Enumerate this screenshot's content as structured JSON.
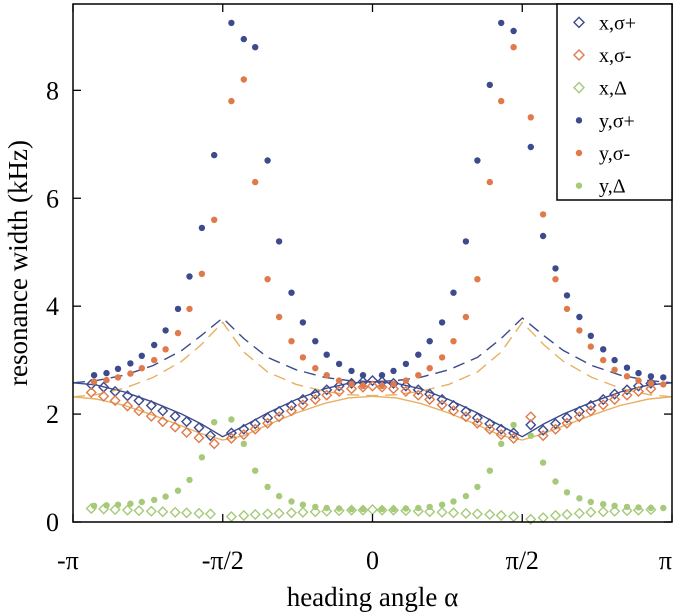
{
  "chart_data": {
    "type": "scatter",
    "xlabel": "heading angle α",
    "ylabel": "resonance width (kHz)",
    "xlim": [
      -3.14159,
      3.14159
    ],
    "ylim": [
      0,
      9.6
    ],
    "x_ticks": [
      {
        "value": -3.14159,
        "label": "-π"
      },
      {
        "value": -1.5708,
        "label": "-π/2"
      },
      {
        "value": 0,
        "label": "0"
      },
      {
        "value": 1.5708,
        "label": "π/2"
      },
      {
        "value": 3.14159,
        "label": "π"
      }
    ],
    "y_ticks": [
      {
        "value": 0,
        "label": "0"
      },
      {
        "value": 2,
        "label": "2"
      },
      {
        "value": 4,
        "label": "4"
      },
      {
        "value": 6,
        "label": "6"
      },
      {
        "value": 8,
        "label": "8"
      }
    ],
    "legend_position": "top-right",
    "colors": {
      "blue": "#3d4a8c",
      "orange": "#e07a4a",
      "green": "#a6c97a",
      "line_blue": "#3d4a8c",
      "line_orange": "#e8b060"
    },
    "series": [
      {
        "name": "x,σ+",
        "marker": "diamond-open",
        "color": "#3d4a8c",
        "x": [
          -2.95,
          -2.82,
          -2.7,
          -2.57,
          -2.45,
          -2.32,
          -2.2,
          -2.07,
          -1.95,
          -1.82,
          -1.7,
          -1.48,
          -1.35,
          -1.23,
          -1.1,
          -0.98,
          -0.85,
          -0.73,
          -0.6,
          -0.48,
          -0.35,
          -0.22,
          -0.1,
          0.0,
          0.1,
          0.22,
          0.35,
          0.48,
          0.6,
          0.73,
          0.85,
          0.98,
          1.1,
          1.23,
          1.35,
          1.48,
          1.66,
          1.79,
          1.92,
          2.04,
          2.17,
          2.29,
          2.42,
          2.54,
          2.67,
          2.79,
          2.92
        ],
        "y": [
          2.55,
          2.5,
          2.42,
          2.34,
          2.25,
          2.16,
          2.06,
          1.96,
          1.86,
          1.75,
          1.6,
          1.65,
          1.72,
          1.82,
          1.93,
          2.05,
          2.16,
          2.27,
          2.37,
          2.45,
          2.52,
          2.57,
          2.6,
          2.62,
          2.6,
          2.57,
          2.52,
          2.45,
          2.37,
          2.27,
          2.16,
          2.05,
          1.93,
          1.82,
          1.72,
          1.65,
          1.8,
          1.7,
          1.82,
          1.93,
          2.05,
          2.16,
          2.27,
          2.37,
          2.45,
          2.52,
          2.57
        ]
      },
      {
        "name": "x,σ-",
        "marker": "diamond-open",
        "color": "#e07a4a",
        "x": [
          -2.95,
          -2.82,
          -2.7,
          -2.57,
          -2.45,
          -2.32,
          -2.2,
          -2.07,
          -1.95,
          -1.82,
          -1.66,
          -1.48,
          -1.35,
          -1.23,
          -1.1,
          -0.98,
          -0.85,
          -0.73,
          -0.6,
          -0.48,
          -0.35,
          -0.22,
          -0.1,
          0.0,
          0.1,
          0.22,
          0.35,
          0.48,
          0.6,
          0.73,
          0.85,
          0.98,
          1.1,
          1.23,
          1.35,
          1.48,
          1.66,
          1.79,
          1.92,
          2.04,
          2.17,
          2.29,
          2.42,
          2.54,
          2.67,
          2.79,
          2.92
        ],
        "y": [
          2.4,
          2.33,
          2.25,
          2.15,
          2.06,
          1.96,
          1.86,
          1.76,
          1.66,
          1.56,
          1.45,
          1.55,
          1.62,
          1.72,
          1.83,
          1.95,
          2.06,
          2.17,
          2.27,
          2.35,
          2.42,
          2.47,
          2.5,
          2.52,
          2.5,
          2.47,
          2.42,
          2.35,
          2.27,
          2.17,
          2.06,
          1.95,
          1.83,
          1.72,
          1.62,
          1.55,
          1.95,
          1.6,
          1.72,
          1.83,
          1.95,
          2.06,
          2.17,
          2.27,
          2.35,
          2.42,
          2.47
        ]
      },
      {
        "name": "x,Δ",
        "marker": "diamond-open",
        "color": "#a6c97a",
        "x": [
          -2.95,
          -2.82,
          -2.7,
          -2.57,
          -2.45,
          -2.32,
          -2.2,
          -2.07,
          -1.95,
          -1.82,
          -1.7,
          -1.48,
          -1.35,
          -1.23,
          -1.1,
          -0.98,
          -0.85,
          -0.73,
          -0.6,
          -0.48,
          -0.35,
          -0.22,
          -0.1,
          0.0,
          0.1,
          0.22,
          0.35,
          0.48,
          0.6,
          0.73,
          0.85,
          0.98,
          1.1,
          1.23,
          1.35,
          1.48,
          1.66,
          1.79,
          1.92,
          2.04,
          2.17,
          2.29,
          2.42,
          2.54,
          2.67,
          2.79,
          2.92
        ],
        "y": [
          0.25,
          0.24,
          0.23,
          0.22,
          0.21,
          0.2,
          0.19,
          0.18,
          0.17,
          0.16,
          0.15,
          0.1,
          0.12,
          0.14,
          0.15,
          0.16,
          0.17,
          0.18,
          0.19,
          0.2,
          0.21,
          0.22,
          0.22,
          0.23,
          0.22,
          0.22,
          0.21,
          0.2,
          0.19,
          0.18,
          0.17,
          0.16,
          0.15,
          0.14,
          0.12,
          0.1,
          0.05,
          0.08,
          0.12,
          0.14,
          0.16,
          0.18,
          0.19,
          0.2,
          0.21,
          0.22,
          0.23
        ]
      },
      {
        "name": "y,σ+",
        "marker": "dot",
        "color": "#3d4a8c",
        "x": [
          -2.92,
          -2.79,
          -2.67,
          -2.54,
          -2.42,
          -2.29,
          -2.17,
          -2.04,
          -1.92,
          -1.79,
          -1.66,
          -1.48,
          -1.35,
          -1.23,
          -1.1,
          -0.98,
          -0.85,
          -0.73,
          -0.6,
          -0.48,
          -0.35,
          -0.22,
          -0.1,
          0.1,
          0.22,
          0.35,
          0.48,
          0.6,
          0.73,
          0.85,
          0.98,
          1.1,
          1.23,
          1.35,
          1.48,
          1.66,
          1.79,
          1.92,
          2.04,
          2.17,
          2.29,
          2.42,
          2.54,
          2.67,
          2.79,
          2.92,
          3.05
        ],
        "y": [
          2.72,
          2.76,
          2.84,
          2.94,
          3.08,
          3.28,
          3.55,
          3.95,
          4.55,
          5.45,
          6.8,
          9.25,
          8.95,
          8.8,
          6.7,
          5.2,
          4.25,
          3.7,
          3.35,
          3.1,
          2.93,
          2.8,
          2.72,
          2.72,
          2.8,
          2.93,
          3.1,
          3.35,
          3.7,
          4.25,
          5.2,
          6.7,
          8.1,
          9.25,
          9.1,
          6.95,
          5.3,
          4.7,
          4.2,
          3.8,
          3.45,
          3.2,
          3.0,
          2.86,
          2.76,
          2.7,
          2.68
        ]
      },
      {
        "name": "y,σ-",
        "marker": "dot",
        "color": "#e07a4a",
        "x": [
          -2.92,
          -2.79,
          -2.67,
          -2.54,
          -2.42,
          -2.29,
          -2.17,
          -2.04,
          -1.92,
          -1.79,
          -1.66,
          -1.48,
          -1.35,
          -1.23,
          -1.1,
          -0.98,
          -0.85,
          -0.73,
          -0.6,
          -0.48,
          -0.35,
          -0.22,
          -0.1,
          0.1,
          0.22,
          0.35,
          0.48,
          0.6,
          0.73,
          0.85,
          0.98,
          1.1,
          1.23,
          1.35,
          1.48,
          1.66,
          1.79,
          1.92,
          2.04,
          2.17,
          2.29,
          2.42,
          2.54,
          2.67,
          2.79,
          2.92,
          3.05
        ],
        "y": [
          2.6,
          2.63,
          2.68,
          2.75,
          2.85,
          3.0,
          3.2,
          3.5,
          3.95,
          4.6,
          5.6,
          7.8,
          8.2,
          6.3,
          4.5,
          3.8,
          3.35,
          3.05,
          2.85,
          2.72,
          2.62,
          2.56,
          2.52,
          2.52,
          2.56,
          2.62,
          2.72,
          2.85,
          3.05,
          3.35,
          3.8,
          4.5,
          6.3,
          7.8,
          8.8,
          7.5,
          5.7,
          4.5,
          3.95,
          3.55,
          3.25,
          3.0,
          2.82,
          2.7,
          2.62,
          2.57,
          2.55
        ]
      },
      {
        "name": "y,Δ",
        "marker": "dot",
        "color": "#a6c97a",
        "x": [
          -2.92,
          -2.79,
          -2.67,
          -2.54,
          -2.42,
          -2.29,
          -2.17,
          -2.04,
          -1.92,
          -1.79,
          -1.66,
          -1.48,
          -1.35,
          -1.23,
          -1.1,
          -0.98,
          -0.85,
          -0.73,
          -0.6,
          -0.48,
          -0.35,
          -0.22,
          -0.1,
          0.1,
          0.22,
          0.35,
          0.48,
          0.6,
          0.73,
          0.85,
          0.98,
          1.1,
          1.23,
          1.35,
          1.48,
          1.66,
          1.79,
          1.92,
          2.04,
          2.17,
          2.29,
          2.42,
          2.54,
          2.67,
          2.79,
          2.92,
          3.05
        ],
        "y": [
          0.3,
          0.31,
          0.32,
          0.34,
          0.37,
          0.41,
          0.47,
          0.58,
          0.78,
          1.2,
          1.85,
          1.9,
          1.45,
          0.95,
          0.65,
          0.48,
          0.38,
          0.32,
          0.28,
          0.26,
          0.25,
          0.24,
          0.24,
          0.24,
          0.24,
          0.25,
          0.26,
          0.28,
          0.32,
          0.38,
          0.48,
          0.65,
          0.95,
          1.45,
          1.8,
          1.6,
          1.1,
          0.75,
          0.55,
          0.44,
          0.37,
          0.33,
          0.3,
          0.28,
          0.27,
          0.26,
          0.26
        ]
      }
    ],
    "lines": [
      {
        "style": "solid",
        "color": "#3d4a8c",
        "x": [
          -3.14159,
          -2.9,
          -2.6,
          -2.3,
          -2.0,
          -1.8,
          -1.5708,
          -1.35,
          -1.1,
          -0.8,
          -0.5,
          -0.25,
          0,
          0.25,
          0.5,
          0.8,
          1.1,
          1.35,
          1.5708,
          1.8,
          2.0,
          2.3,
          2.6,
          2.9,
          3.14159
        ],
        "y": [
          2.58,
          2.54,
          2.41,
          2.22,
          2.0,
          1.82,
          1.58,
          1.78,
          2.02,
          2.27,
          2.47,
          2.57,
          2.6,
          2.57,
          2.47,
          2.27,
          2.02,
          1.78,
          1.58,
          1.82,
          2.0,
          2.22,
          2.41,
          2.54,
          2.58
        ]
      },
      {
        "style": "solid",
        "color": "#e8b060",
        "x": [
          -3.14159,
          -2.9,
          -2.6,
          -2.3,
          -2.0,
          -1.8,
          -1.5708,
          -1.35,
          -1.1,
          -0.8,
          -0.5,
          -0.25,
          0,
          0.25,
          0.5,
          0.8,
          1.1,
          1.35,
          1.5708,
          1.8,
          2.0,
          2.3,
          2.6,
          2.9,
          3.14159
        ],
        "y": [
          2.32,
          2.28,
          2.16,
          1.98,
          1.78,
          1.64,
          1.52,
          1.6,
          1.8,
          2.02,
          2.2,
          2.3,
          2.33,
          2.3,
          2.2,
          2.02,
          1.8,
          1.6,
          1.52,
          1.64,
          1.78,
          1.98,
          2.16,
          2.28,
          2.32
        ]
      },
      {
        "style": "dashed",
        "color": "#3d4a8c",
        "x": [
          -3.14159,
          -2.9,
          -2.6,
          -2.3,
          -2.0,
          -1.8,
          -1.5708,
          -1.35,
          -1.1,
          -0.8,
          -0.5,
          -0.25,
          0,
          0.25,
          0.5,
          0.8,
          1.1,
          1.35,
          1.5708,
          1.8,
          2.0,
          2.3,
          2.6,
          2.9,
          3.14159
        ],
        "y": [
          2.58,
          2.62,
          2.72,
          2.9,
          3.18,
          3.45,
          3.78,
          3.4,
          3.05,
          2.82,
          2.68,
          2.62,
          2.6,
          2.62,
          2.68,
          2.82,
          3.05,
          3.4,
          3.78,
          3.45,
          3.18,
          2.9,
          2.72,
          2.62,
          2.58
        ]
      },
      {
        "style": "dashed",
        "color": "#e8b060",
        "x": [
          -3.14159,
          -2.9,
          -2.6,
          -2.3,
          -2.0,
          -1.8,
          -1.5708,
          -1.35,
          -1.1,
          -0.8,
          -0.5,
          -0.25,
          0,
          0.25,
          0.5,
          0.8,
          1.1,
          1.35,
          1.5708,
          1.8,
          2.0,
          2.3,
          2.6,
          2.9,
          3.14159
        ],
        "y": [
          2.32,
          2.36,
          2.48,
          2.68,
          2.98,
          3.28,
          3.7,
          3.15,
          2.78,
          2.55,
          2.42,
          2.36,
          2.34,
          2.36,
          2.42,
          2.55,
          2.78,
          3.15,
          3.7,
          3.28,
          2.98,
          2.68,
          2.48,
          2.36,
          2.32
        ]
      }
    ]
  }
}
